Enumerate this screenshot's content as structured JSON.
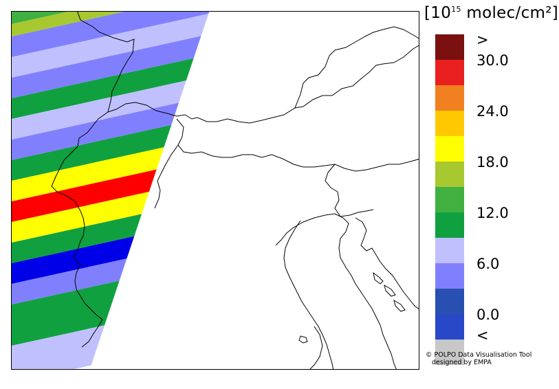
{
  "units_label": {
    "prefix": "[10",
    "exponent": "15",
    "suffix": " molec/cm²]"
  },
  "legend": {
    "swatches": [
      {
        "name": "above-max",
        "color": "#7a1010"
      },
      {
        "name": "30-33",
        "color": "#e82020"
      },
      {
        "name": "27-30",
        "color": "#f08020"
      },
      {
        "name": "24-27",
        "color": "#ffc800"
      },
      {
        "name": "21-24",
        "color": "#ffff00"
      },
      {
        "name": "18-21",
        "color": "#a8c830"
      },
      {
        "name": "15-18",
        "color": "#40b040"
      },
      {
        "name": "12-15",
        "color": "#10a040"
      },
      {
        "name": "9-12",
        "color": "#c0c0ff"
      },
      {
        "name": "6-9",
        "color": "#8080ff"
      },
      {
        "name": "3-6",
        "color": "#2850b0"
      },
      {
        "name": "0-3",
        "color": "#2848c8"
      },
      {
        "name": "below-min",
        "color": "#c8c8c8"
      }
    ],
    "ticks": [
      ">",
      "30.0",
      "24.0",
      "18.0",
      "12.0",
      "6.0",
      "0.0",
      "<"
    ]
  },
  "credit": {
    "line1": "© POLPO Data Visualisation Tool",
    "line2": "designed by EMPA"
  },
  "map_swaths": [
    {
      "color": "#40b040"
    },
    {
      "color": "#a8c830"
    },
    {
      "color": "#8080ff"
    },
    {
      "color": "#c0c0ff"
    },
    {
      "color": "#8080ff"
    },
    {
      "color": "#10a040"
    },
    {
      "color": "#c0c0ff"
    },
    {
      "color": "#8080ff"
    },
    {
      "color": "#10a040"
    },
    {
      "color": "#ffff00"
    },
    {
      "color": "#ff0000"
    },
    {
      "color": "#ffff00"
    },
    {
      "color": "#10a040"
    },
    {
      "color": "#0000e8"
    },
    {
      "color": "#8080ff"
    },
    {
      "color": "#10a040"
    },
    {
      "color": "#c0c0ff"
    }
  ]
}
